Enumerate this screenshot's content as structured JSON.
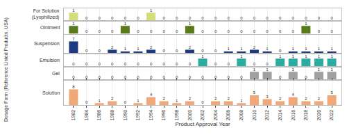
{
  "chart_data": {
    "type": "bar",
    "xlabel": "Product Approval Year",
    "ylabel": "Dosage Form (Reference Listed Products, USA)",
    "x": [
      1982,
      1984,
      1986,
      1988,
      1990,
      1992,
      1994,
      1996,
      1998,
      2000,
      2002,
      2004,
      2006,
      2008,
      2010,
      2012,
      2014,
      2016,
      2018,
      2020,
      2022
    ],
    "xlim": [
      1980.5,
      2023.5
    ],
    "xticks": [
      1982,
      1984,
      1986,
      1988,
      1990,
      1992,
      1994,
      1996,
      1998,
      2000,
      2002,
      2004,
      2006,
      2008,
      2010,
      2012,
      2014,
      2016,
      2018,
      2020,
      2022
    ],
    "grid": true,
    "data_labels": true,
    "tick_labels": "x",
    "series": [
      {
        "name": "For Solution\n(Lyophilized)",
        "color": "#d4de7a",
        "ylim": [
          0,
          1.55
        ],
        "values": [
          1,
          0,
          0,
          0,
          0,
          0,
          1,
          0,
          0,
          0,
          0,
          0,
          0,
          0,
          0,
          0,
          0,
          0,
          0,
          0,
          0
        ]
      },
      {
        "name": "Ointment",
        "color": "#5a7a1e",
        "ylim": [
          0,
          1.55
        ],
        "values": [
          1,
          0,
          0,
          0,
          1,
          0,
          0,
          0,
          0,
          1,
          0,
          0,
          0,
          0,
          0,
          0,
          0,
          0,
          1,
          0,
          0
        ]
      },
      {
        "name": "Suspension",
        "color": "#1e3a80",
        "ylim": [
          0,
          10.85
        ],
        "values": [
          7,
          0,
          0,
          2,
          1,
          1,
          2,
          0,
          0,
          2,
          0,
          0,
          1,
          1,
          2,
          1,
          0,
          1,
          1,
          1,
          1
        ]
      },
      {
        "name": "Emulsion",
        "color": "#2aada0",
        "ylim": [
          0,
          1.55
        ],
        "values": [
          0,
          0,
          0,
          0,
          0,
          0,
          0,
          0,
          0,
          0,
          1,
          0,
          0,
          1,
          0,
          0,
          1,
          1,
          1,
          1,
          1
        ]
      },
      {
        "name": "Gel",
        "color": "#a0a0a0",
        "ylim": [
          0,
          1.55
        ],
        "values": [
          0,
          0,
          0,
          0,
          0,
          0,
          0,
          0,
          0,
          0,
          0,
          0,
          0,
          0,
          1,
          1,
          0,
          1,
          0,
          1,
          1
        ]
      },
      {
        "name": "Solution",
        "color": "#f0a878",
        "ylim": [
          0,
          12.4
        ],
        "values": [
          8,
          0,
          1,
          2,
          0,
          1,
          4,
          2,
          1,
          2,
          0,
          2,
          2,
          1,
          5,
          3,
          2,
          4,
          2,
          2,
          5
        ]
      }
    ]
  }
}
